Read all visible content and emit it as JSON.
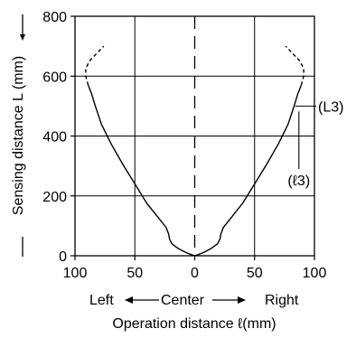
{
  "chart_data": {
    "type": "line",
    "xlabel": "Operation distance ℓ(mm)",
    "ylabel": "Sensing distance L (mm)",
    "x_ticks": [
      {
        "value": -100,
        "label": "100"
      },
      {
        "value": -50,
        "label": "50"
      },
      {
        "value": 0,
        "label": "0"
      },
      {
        "value": 50,
        "label": "50"
      },
      {
        "value": 100,
        "label": "100"
      }
    ],
    "y_ticks": [
      {
        "value": 0,
        "label": "0"
      },
      {
        "value": 200,
        "label": "200"
      },
      {
        "value": 400,
        "label": "400"
      },
      {
        "value": 600,
        "label": "600"
      },
      {
        "value": 800,
        "label": "800"
      }
    ],
    "xlim": [
      -100,
      100
    ],
    "ylim": [
      0,
      800
    ],
    "grid": true,
    "direction_labels": {
      "left": "Left",
      "center": "Center",
      "right": "Right"
    },
    "annotations": [
      {
        "text": "(L3)",
        "x": 84,
        "y": 500
      },
      {
        "text": "(ℓ3)",
        "x": 84,
        "y": 400
      }
    ],
    "series": [
      {
        "x": [
          0,
          -3,
          -8,
          -14,
          -19,
          -21,
          -22,
          -24,
          -30,
          -40,
          -50,
          -60,
          -70,
          -78,
          -83,
          -86,
          -89
        ],
        "y": [
          0,
          4,
          12,
          25,
          40,
          55,
          75,
          95,
          125,
          175,
          240,
          305,
          375,
          440,
          500,
          540,
          570
        ]
      },
      {
        "x": [
          -89,
          -91,
          -91,
          -88,
          -82,
          -76
        ],
        "y": [
          570,
          600,
          625,
          650,
          675,
          700
        ]
      },
      {
        "x": [
          0,
          3,
          8,
          14,
          19,
          21,
          22,
          24,
          30,
          40,
          50,
          60,
          70,
          78,
          83,
          86,
          89
        ],
        "y": [
          0,
          4,
          12,
          25,
          40,
          55,
          75,
          95,
          125,
          175,
          240,
          305,
          375,
          440,
          500,
          540,
          570
        ]
      },
      {
        "x": [
          89,
          91,
          91,
          88,
          82,
          76
        ],
        "y": [
          570,
          600,
          625,
          650,
          675,
          700
        ]
      }
    ]
  }
}
